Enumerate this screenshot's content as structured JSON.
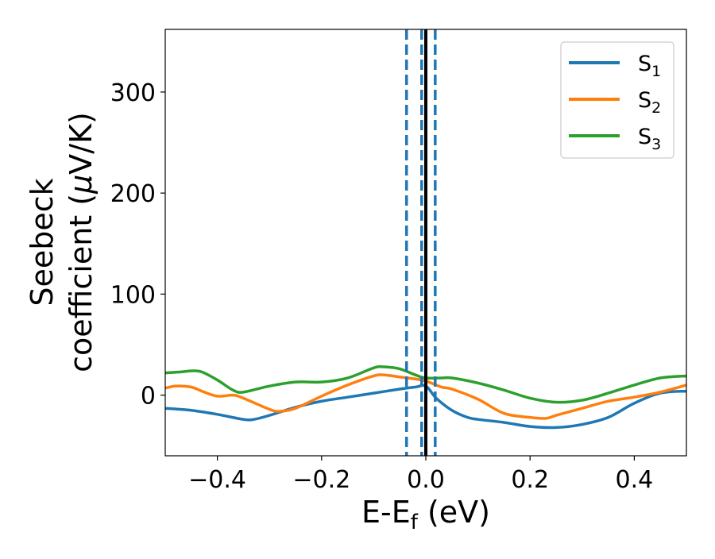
{
  "chart_data": {
    "type": "line",
    "title": "",
    "xlabel": {
      "main": "E-E",
      "sub": "f",
      "suffix": " (eV)"
    },
    "ylabel": {
      "line1": "Seebeck",
      "line2_prefix": "coefficient  (",
      "line2_mu": "μ",
      "line2_suffix": "V/K)"
    },
    "xlim": [
      -0.5,
      0.5
    ],
    "ylim": [
      -60,
      362
    ],
    "xticks": [
      {
        "value": -0.4,
        "label": "−0.4"
      },
      {
        "value": -0.2,
        "label": "−0.2"
      },
      {
        "value": 0.0,
        "label": "0.0"
      },
      {
        "value": 0.2,
        "label": "0.2"
      },
      {
        "value": 0.4,
        "label": "0.4"
      }
    ],
    "yticks": [
      {
        "value": 0,
        "label": "0"
      },
      {
        "value": 100,
        "label": "100"
      },
      {
        "value": 200,
        "label": "200"
      },
      {
        "value": 300,
        "label": "300"
      }
    ],
    "grid": false,
    "legend_position": "top-right",
    "series": [
      {
        "name": "S",
        "sub": "1",
        "color": "#1f77b4",
        "x": [
          -0.5,
          -0.45,
          -0.4,
          -0.35,
          -0.33,
          -0.3,
          -0.25,
          -0.2,
          -0.15,
          -0.1,
          -0.05,
          -0.02,
          0.0,
          0.02,
          0.05,
          0.08,
          0.1,
          0.15,
          0.2,
          0.25,
          0.3,
          0.35,
          0.4,
          0.45,
          0.5
        ],
        "y": [
          -13,
          -15,
          -19,
          -24,
          -24,
          -20,
          -12,
          -6,
          -2,
          2,
          6,
          8,
          9,
          -3,
          -15,
          -22,
          -24,
          -27,
          -31,
          -32,
          -29,
          -22,
          -8,
          2,
          4
        ]
      },
      {
        "name": "S",
        "sub": "2",
        "color": "#ff7f0e",
        "x": [
          -0.5,
          -0.48,
          -0.45,
          -0.43,
          -0.4,
          -0.37,
          -0.35,
          -0.3,
          -0.28,
          -0.25,
          -0.2,
          -0.15,
          -0.1,
          -0.08,
          -0.05,
          -0.02,
          0.0,
          0.03,
          0.05,
          0.1,
          0.15,
          0.2,
          0.23,
          0.25,
          0.3,
          0.35,
          0.4,
          0.45,
          0.5
        ],
        "y": [
          7,
          9,
          8,
          4,
          -1,
          0,
          -3,
          -14,
          -16,
          -13,
          -1,
          10,
          19,
          20,
          18,
          16,
          14,
          8,
          6,
          -4,
          -18,
          -22,
          -23,
          -20,
          -13,
          -6,
          -2,
          3,
          10
        ]
      },
      {
        "name": "S",
        "sub": "3",
        "color": "#2ca02c",
        "x": [
          -0.5,
          -0.47,
          -0.45,
          -0.43,
          -0.4,
          -0.37,
          -0.35,
          -0.3,
          -0.25,
          -0.2,
          -0.15,
          -0.1,
          -0.08,
          -0.05,
          -0.02,
          0.0,
          0.03,
          0.05,
          0.1,
          0.15,
          0.2,
          0.25,
          0.3,
          0.35,
          0.4,
          0.45,
          0.5
        ],
        "y": [
          22,
          23,
          24,
          23,
          15,
          5,
          3,
          9,
          13,
          13,
          17,
          27,
          28,
          26,
          20,
          17,
          17,
          17,
          12,
          5,
          -3,
          -7,
          -5,
          2,
          10,
          17,
          19
        ]
      }
    ],
    "vlines": [
      {
        "x": -0.037,
        "style": "dashed",
        "color": "#1f77b4"
      },
      {
        "x": -0.008,
        "style": "dashed",
        "color": "#1f77b4"
      },
      {
        "x": 0.018,
        "style": "dashed",
        "color": "#1f77b4"
      },
      {
        "x": 0.0,
        "style": "solid",
        "color": "#000000"
      }
    ]
  }
}
